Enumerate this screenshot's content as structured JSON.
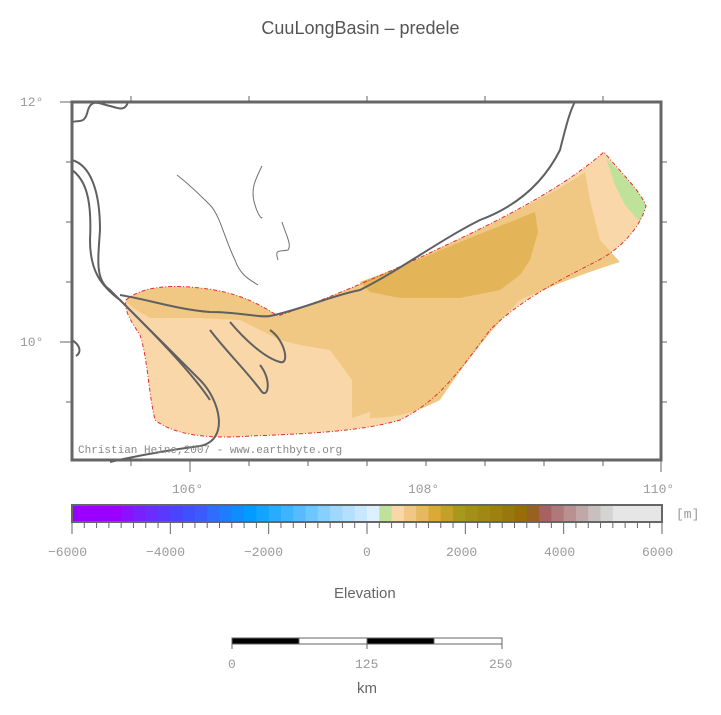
{
  "title": "CuuLongBasin – predele",
  "map": {
    "lat_labels": [
      "12°",
      "10°"
    ],
    "lon_labels": [
      "106°",
      "108°",
      "110°"
    ],
    "credit": "Christian Heine,2007 - www.earthbyte.org",
    "region_colors": {
      "light": "#fad7a8",
      "mid": "#f0c884",
      "dark": "#e4b458",
      "green": "#bfe29a",
      "outline": "#e03030",
      "coast": "#606060"
    }
  },
  "colorbar": {
    "unit": "[m]",
    "tick_labels": [
      "−6000",
      "−4000",
      "−2000",
      "0",
      "2000",
      "4000",
      "6000"
    ],
    "title": "Elevation",
    "colors": [
      "#9a00ff",
      "#9a00ff",
      "#9a00ff",
      "#9a00ff",
      "#8a10ff",
      "#7a20ff",
      "#6a2cff",
      "#5a38ff",
      "#4a44ff",
      "#4050ff",
      "#3a5cff",
      "#2f6cff",
      "#1f7cff",
      "#0f8cff",
      "#009cff",
      "#14a4ff",
      "#28acff",
      "#3cb4ff",
      "#56bcff",
      "#6ec6ff",
      "#86d0ff",
      "#9ed8ff",
      "#b4e0ff",
      "#c8e8ff",
      "#ddf0ff",
      "#bfe29a",
      "#fad7a8",
      "#f0c884",
      "#e8b860",
      "#dca838",
      "#c4a028",
      "#a89820",
      "#a49018",
      "#a08814",
      "#9c8010",
      "#98780c",
      "#986c08",
      "#9a6020",
      "#a86060",
      "#b07878",
      "#b89090",
      "#c0a8a8",
      "#c8c0c0",
      "#d4d4d4",
      "#e6e6e6",
      "#e6e6e6",
      "#e6e6e6",
      "#e6e6e6"
    ]
  },
  "scalebar": {
    "tick_labels": [
      "0",
      "125",
      "250"
    ],
    "unit": "km"
  }
}
